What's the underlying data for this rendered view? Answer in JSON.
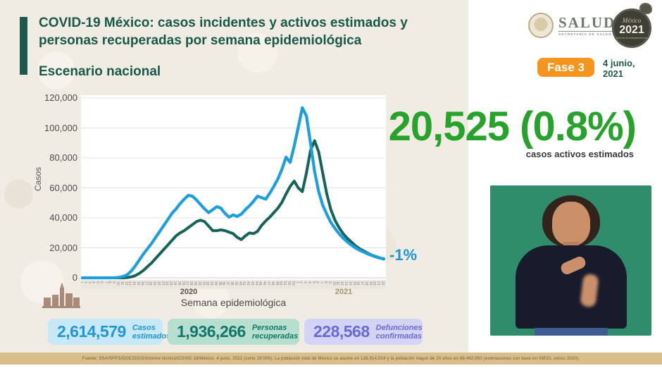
{
  "slide": {
    "title_line1": "COVID-19 México: casos incidentes y activos estimados y",
    "title_line2": "personas recuperadas por semana epidemiológica",
    "subtitle": "Escenario nacional",
    "phase_badge": "Fase 3",
    "date_line1": "4 junio,",
    "date_line2": "2021"
  },
  "logos": {
    "salud_word": "SALUD",
    "salud_sub": "SECRETARÍA DE SALUD",
    "mx2021_name": "México",
    "mx2021_year": "2021",
    "mx2021_tagline": "Año de la Independencia"
  },
  "highlight": {
    "big_number": "20,525 (0.8%)",
    "big_number_label": "casos activos estimados",
    "trend_annotation": "-1%"
  },
  "stats": [
    {
      "value": "2,614,579",
      "label_line1": "Casos",
      "label_line2": "estimados"
    },
    {
      "value": "1,936,266",
      "label_line1": "Personas",
      "label_line2": "recuperadas"
    },
    {
      "value": "228,568",
      "label_line1": "Defunciones",
      "label_line2": "confirmadas"
    }
  ],
  "footer": {
    "source": "Fuente: SSA/SPPS/DGE/DGIS/Informe técnico/COVID-19/México. 4 junio, 2021 (corte 19:00h). La población total de México se asume en 126,914,024 y la población mayor de 20 años en 89,462,050 (estimaciones con base en INEGI, censo 2020)."
  },
  "colors": {
    "accent_green": "#1a594a",
    "highlight_green": "#27a32b",
    "phase_orange": "#f7941e",
    "series_blue": "#1d9ede",
    "series_teal": "#16635a",
    "stat_blue": "#2196d3",
    "stat_teal": "#12776a",
    "stat_purple": "#6a6ad4",
    "footer_tan": "#d9bd8b",
    "interpreter_green": "#2f8d6c"
  },
  "chart_data": {
    "type": "line",
    "title": "",
    "xlabel": "Semana epidemiológica",
    "ylabel": "Casos",
    "ylim": [
      0,
      120000
    ],
    "ytick_step": 20000,
    "yticks": [
      "0",
      "20,000",
      "40,000",
      "60,000",
      "80,000",
      "100,000",
      "120,000"
    ],
    "grid": "horizontal",
    "legend_position": "none",
    "x_year_labels": [
      "2020",
      "2021"
    ],
    "weeks_2020": 53,
    "weeks_2021": 22,
    "end_annotation": "-1%",
    "series": [
      {
        "name": "Personas recuperadas",
        "color": "#16635a",
        "stroke_width": 4,
        "values": [
          0,
          0,
          0,
          0,
          0,
          0,
          0,
          0,
          0,
          0,
          0,
          200,
          600,
          1500,
          3000,
          5000,
          7500,
          10000,
          13000,
          16000,
          19000,
          22000,
          25000,
          28000,
          30000,
          31500,
          33500,
          35500,
          37500,
          38500,
          37500,
          34500,
          31500,
          31500,
          32000,
          31500,
          30500,
          29500,
          27000,
          25500,
          28000,
          30000,
          29500,
          31000,
          35000,
          38000,
          40500,
          43500,
          46500,
          50500,
          56000,
          61000,
          64500,
          60000,
          57500,
          70000,
          85000,
          91500,
          84000,
          70000,
          56000,
          45500,
          38500,
          33500,
          29500,
          26500,
          24000,
          21500,
          19500,
          18000,
          16500,
          15200,
          14200,
          13300,
          12500
        ]
      },
      {
        "name": "Casos estimados",
        "color": "#1d9ede",
        "stroke_width": 4.2,
        "values": [
          0,
          0,
          0,
          0,
          0,
          0,
          0,
          0,
          100,
          300,
          900,
          2000,
          4500,
          8000,
          12000,
          16000,
          19500,
          23000,
          27000,
          31000,
          35000,
          39000,
          43000,
          46000,
          49500,
          52500,
          55000,
          54500,
          52000,
          49000,
          46000,
          43500,
          45500,
          47500,
          46500,
          43000,
          40500,
          42000,
          41000,
          42500,
          45500,
          48000,
          51000,
          54500,
          53500,
          52500,
          56500,
          61000,
          66000,
          72500,
          80500,
          77000,
          88000,
          100500,
          113500,
          108000,
          90000,
          71000,
          57500,
          48500,
          42500,
          37000,
          33000,
          29500,
          26500,
          24000,
          22000,
          20000,
          18500,
          17200,
          16000,
          15000,
          14000,
          13200,
          12700
        ]
      }
    ]
  }
}
